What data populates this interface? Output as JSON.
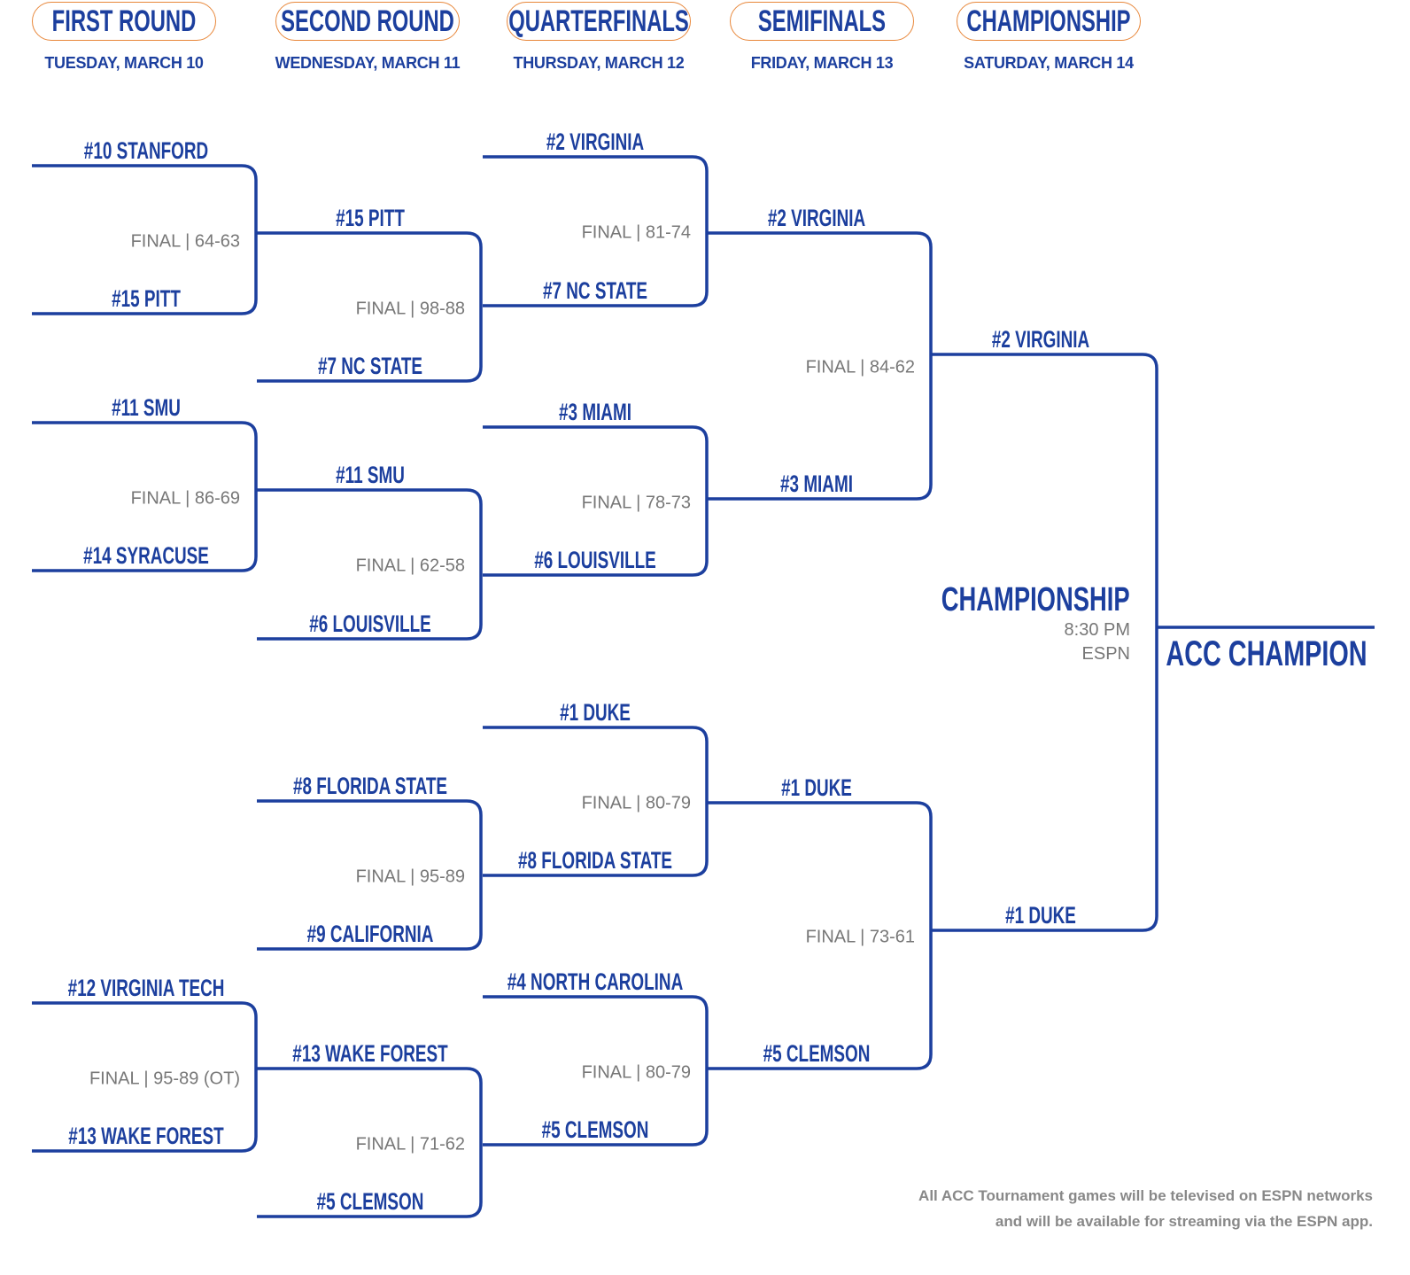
{
  "colors": {
    "blue": "#1c3f9e",
    "orange": "#e8873a",
    "gray": "#777777"
  },
  "header": [
    {
      "round": "FIRST ROUND",
      "date": "TUESDAY, MARCH 10"
    },
    {
      "round": "SECOND ROUND",
      "date": "WEDNESDAY, MARCH 11"
    },
    {
      "round": "QUARTERFINALS",
      "date": "THURSDAY, MARCH 12"
    },
    {
      "round": "SEMIFINALS",
      "date": "FRIDAY, MARCH 13"
    },
    {
      "round": "CHAMPIONSHIP",
      "date": "SATURDAY, MARCH 14"
    }
  ],
  "rounds": [
    {
      "matchups": [
        {
          "top": "#10 STANFORD",
          "bottom": "#15 PITT",
          "score": "FINAL | 64-63"
        },
        {
          "top": "#11 SMU",
          "bottom": "#14 SYRACUSE",
          "score": "FINAL | 86-69"
        },
        {
          "top": "#12 VIRGINIA TECH",
          "bottom": "#13 WAKE FOREST",
          "score": "FINAL | 95-89 (OT)"
        }
      ]
    },
    {
      "matchups": [
        {
          "top": "#15 PITT",
          "bottom": "#7 NC STATE",
          "score": "FINAL | 98-88"
        },
        {
          "top": "#11 SMU",
          "bottom": "#6 LOUISVILLE",
          "score": "FINAL | 62-58"
        },
        {
          "top": "#8 FLORIDA STATE",
          "bottom": "#9 CALIFORNIA",
          "score": "FINAL | 95-89"
        },
        {
          "top": "#13 WAKE FOREST",
          "bottom": "#5 CLEMSON",
          "score": "FINAL | 71-62"
        }
      ]
    },
    {
      "matchups": [
        {
          "top": "#2 VIRGINIA",
          "bottom": "#7 NC STATE",
          "score": "FINAL | 81-74"
        },
        {
          "top": "#3 MIAMI",
          "bottom": "#6 LOUISVILLE",
          "score": "FINAL | 78-73"
        },
        {
          "top": "#1 DUKE",
          "bottom": "#8 FLORIDA STATE",
          "score": "FINAL | 80-79"
        },
        {
          "top": "#4 NORTH CAROLINA",
          "bottom": "#5 CLEMSON",
          "score": "FINAL | 80-79"
        }
      ]
    },
    {
      "matchups": [
        {
          "top": "#2 VIRGINIA",
          "bottom": "#3 MIAMI",
          "score": "FINAL | 84-62"
        },
        {
          "top": "#1 DUKE",
          "bottom": "#5 CLEMSON",
          "score": "FINAL | 73-61"
        }
      ]
    },
    {
      "matchups": [
        {
          "top": "#2 VIRGINIA",
          "bottom": "#1 DUKE",
          "score": ""
        }
      ]
    }
  ],
  "championship": {
    "title": "CHAMPIONSHIP",
    "time": "8:30 PM",
    "network": "ESPN",
    "winner_label": "ACC CHAMPION"
  },
  "footer": {
    "line1": "All ACC Tournament games will be televised on ESPN networks",
    "line2": "and will be available for streaming via the ESPN app."
  }
}
